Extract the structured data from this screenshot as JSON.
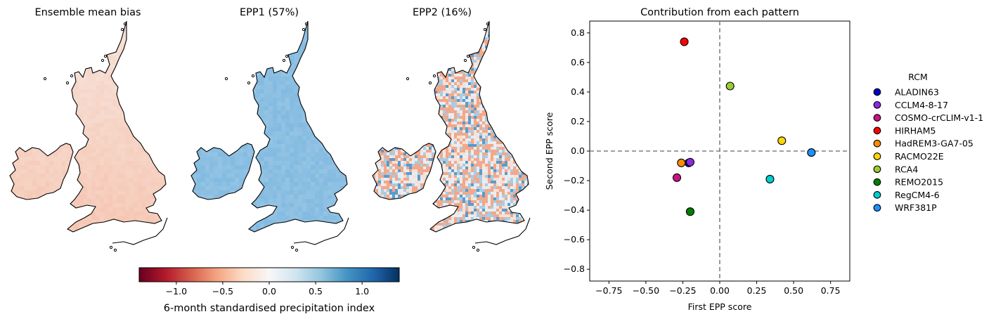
{
  "maps": {
    "panels": [
      {
        "title": "Ensemble mean bias",
        "palette": "bias"
      },
      {
        "title": "EPP1 (57%)",
        "palette": "epp1"
      },
      {
        "title": "EPP2 (16%)",
        "palette": "epp2"
      }
    ],
    "colorbar": {
      "label": "6-month standardised precipitation index",
      "ticks": [
        "−1.0",
        "−0.5",
        "0.0",
        "0.5",
        "1.0"
      ],
      "tick_values": [
        -1.0,
        -0.5,
        0.0,
        0.5,
        1.0
      ],
      "range": [
        -1.4,
        1.4
      ],
      "colormap": "RdBu",
      "stops": [
        "#67001f",
        "#b2182b",
        "#d6604d",
        "#f4a582",
        "#fddbc7",
        "#f7f7f7",
        "#d1e5f0",
        "#92c5de",
        "#4393c3",
        "#2166ac",
        "#053061"
      ]
    }
  },
  "chart_data": {
    "type": "scatter",
    "title": "Contribution from each pattern",
    "xlabel": "First EPP score",
    "ylabel": "Second EPP score",
    "xlim": [
      -0.88,
      0.88
    ],
    "ylim": [
      -0.88,
      0.88
    ],
    "xticks": [
      -0.75,
      -0.5,
      -0.25,
      0.0,
      0.25,
      0.5,
      0.75
    ],
    "xtick_labels": [
      "−0.75",
      "−0.50",
      "−0.25",
      "0.00",
      "0.25",
      "0.50",
      "0.75"
    ],
    "yticks": [
      0.8,
      0.6,
      0.4,
      0.2,
      0.0,
      -0.2,
      -0.4,
      -0.6,
      -0.8
    ],
    "ytick_labels": [
      "0.8",
      "0.6",
      "0.4",
      "0.2",
      "0.0",
      "−0.2",
      "−0.4",
      "−0.6",
      "−0.8"
    ],
    "reference_lines": {
      "x": 0.0,
      "y": 0.0,
      "style": "dashed",
      "color": "#808080"
    },
    "grid": false,
    "legend": {
      "title": "RCM",
      "placement": "outside-right"
    },
    "series": [
      {
        "name": "ALADIN63",
        "x": -0.21,
        "y": -0.08,
        "color": "#0000c8"
      },
      {
        "name": "CCLM4-8-17",
        "x": -0.2,
        "y": -0.075,
        "color": "#8a2be2"
      },
      {
        "name": "COSMO-crCLIM-v1-1",
        "x": -0.29,
        "y": -0.18,
        "color": "#c71585"
      },
      {
        "name": "HIRHAM5",
        "x": -0.24,
        "y": 0.74,
        "color": "#ff0000"
      },
      {
        "name": "HadREM3-GA7-05",
        "x": -0.26,
        "y": -0.08,
        "color": "#ff8c00"
      },
      {
        "name": "RACMO22E",
        "x": 0.42,
        "y": 0.07,
        "color": "#ffd700"
      },
      {
        "name": "RCA4",
        "x": 0.07,
        "y": 0.44,
        "color": "#9acd32"
      },
      {
        "name": "REMO2015",
        "x": -0.2,
        "y": -0.41,
        "color": "#008000"
      },
      {
        "name": "RegCM4-6",
        "x": 0.34,
        "y": -0.19,
        "color": "#00ced1"
      },
      {
        "name": "WRF381P",
        "x": 0.62,
        "y": -0.01,
        "color": "#1e90ff"
      }
    ]
  }
}
